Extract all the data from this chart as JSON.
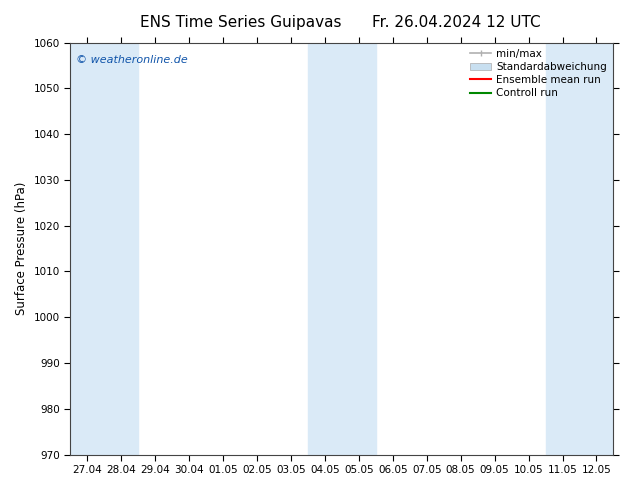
{
  "title_left": "ENS Time Series Guipavas",
  "title_right": "Fr. 26.04.2024 12 UTC",
  "ylabel": "Surface Pressure (hPa)",
  "ylim": [
    970,
    1060
  ],
  "yticks": [
    970,
    980,
    990,
    1000,
    1010,
    1020,
    1030,
    1040,
    1050,
    1060
  ],
  "x_labels": [
    "27.04",
    "28.04",
    "29.04",
    "30.04",
    "01.05",
    "02.05",
    "03.05",
    "04.05",
    "05.05",
    "06.05",
    "07.05",
    "08.05",
    "09.05",
    "10.05",
    "11.05",
    "12.05"
  ],
  "watermark": "© weatheronline.de",
  "bg_color": "#ffffff",
  "plot_bg_color": "#ffffff",
  "band_color": "#daeaf7",
  "ensemble_color": "#ff0000",
  "control_color": "#008800",
  "minmax_color": "#b0b0b0",
  "std_color": "#c8dff0",
  "shaded_band_indices": [
    0,
    1,
    7,
    8,
    14,
    15
  ],
  "title_fontsize": 11,
  "tick_fontsize": 7.5,
  "label_fontsize": 8.5,
  "legend_fontsize": 7.5
}
